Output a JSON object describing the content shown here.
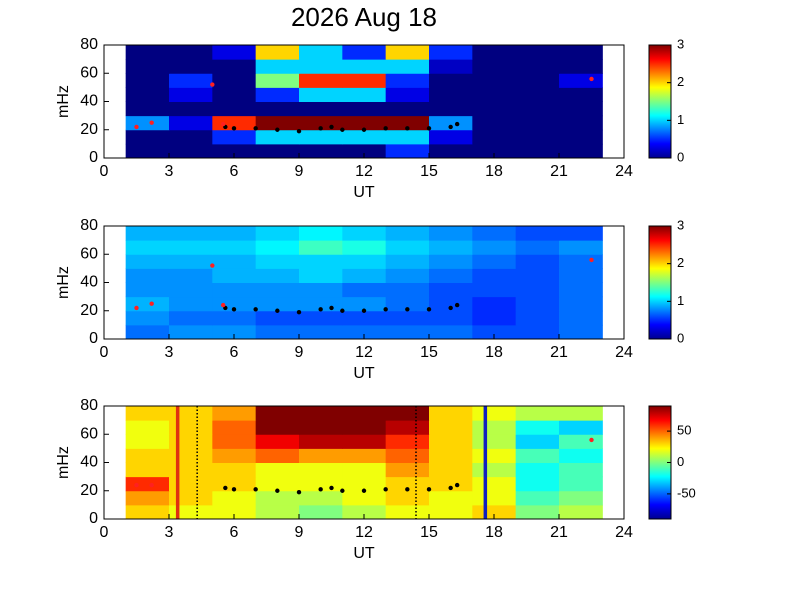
{
  "chart_data": [
    {
      "type": "heatmap",
      "title": "2026 Aug 18",
      "xlabel": "UT",
      "ylabel": "mHz",
      "colormap": "jet",
      "xlim": [
        0,
        24
      ],
      "xticks": [
        0,
        3,
        6,
        9,
        12,
        15,
        18,
        21,
        24
      ],
      "ylim": [
        0,
        80
      ],
      "yticks": [
        0,
        20,
        40,
        60,
        80
      ],
      "x": [
        1,
        3,
        5,
        7,
        9,
        11,
        13,
        15,
        17,
        19,
        21,
        23
      ],
      "y": [
        0,
        10,
        20,
        30,
        40,
        50,
        60,
        70,
        80
      ],
      "z": [
        [
          0,
          0,
          0,
          0,
          0,
          0,
          0.5,
          0,
          0,
          0,
          0
        ],
        [
          0,
          0,
          0.5,
          1,
          1,
          1,
          1,
          0.3,
          0,
          0,
          0
        ],
        [
          0.8,
          0.3,
          2.5,
          3,
          3,
          3,
          3,
          0.8,
          0,
          0,
          0
        ],
        [
          0,
          0,
          0,
          0,
          0,
          0,
          0,
          0,
          0,
          0,
          0
        ],
        [
          0,
          0.3,
          0,
          0.5,
          1,
          1,
          0.3,
          0,
          0,
          0,
          0
        ],
        [
          0,
          0.5,
          0,
          1.5,
          2.5,
          2.5,
          0.5,
          0,
          0,
          0,
          0.3
        ],
        [
          0,
          0,
          0,
          1,
          1,
          1,
          1,
          0.2,
          0,
          0,
          0
        ],
        [
          0,
          0,
          0.3,
          2,
          1,
          0.5,
          2,
          0.5,
          0,
          0,
          0
        ]
      ],
      "clim": [
        0,
        3
      ],
      "cticks": [
        0,
        1,
        2,
        3
      ],
      "trace": {
        "color": "#000000",
        "x": [
          5.6,
          6,
          7,
          8,
          9,
          10,
          10.5,
          11,
          12,
          13,
          14,
          15,
          16,
          16.3
        ],
        "y": [
          22,
          21,
          21,
          20,
          19,
          21,
          22,
          20,
          20,
          21,
          21,
          21,
          22,
          24
        ]
      },
      "stars": {
        "color": "#ff2020",
        "x": [
          1.5,
          2.2,
          5.0,
          5.5,
          22.5
        ],
        "y": [
          22,
          25,
          52,
          24,
          56
        ]
      }
    },
    {
      "type": "heatmap",
      "xlabel": "UT",
      "ylabel": "mHz",
      "colormap": "jet",
      "xlim": [
        0,
        24
      ],
      "xticks": [
        0,
        3,
        6,
        9,
        12,
        15,
        18,
        21,
        24
      ],
      "ylim": [
        0,
        80
      ],
      "yticks": [
        0,
        20,
        40,
        60,
        80
      ],
      "x": [
        1,
        3,
        5,
        7,
        9,
        11,
        13,
        15,
        17,
        19,
        21,
        23
      ],
      "y": [
        0,
        10,
        20,
        30,
        40,
        50,
        60,
        70,
        80
      ],
      "z": [
        [
          0.7,
          0.8,
          0.8,
          0.7,
          0.7,
          0.7,
          0.7,
          0.7,
          0.6,
          0.6,
          0.7
        ],
        [
          0.8,
          0.7,
          0.7,
          0.6,
          0.6,
          0.6,
          0.6,
          0.6,
          0.5,
          0.6,
          0.7
        ],
        [
          0.9,
          0.8,
          0.8,
          0.8,
          0.8,
          0.8,
          0.7,
          0.6,
          0.5,
          0.6,
          0.7
        ],
        [
          0.8,
          0.8,
          0.8,
          0.8,
          0.8,
          0.7,
          0.7,
          0.6,
          0.6,
          0.6,
          0.7
        ],
        [
          0.8,
          0.8,
          0.9,
          0.9,
          1.0,
          0.9,
          0.8,
          0.7,
          0.6,
          0.6,
          0.7
        ],
        [
          0.9,
          0.9,
          0.9,
          1.0,
          1.0,
          1.0,
          0.9,
          0.8,
          0.7,
          0.6,
          0.7
        ],
        [
          1.0,
          1.0,
          1.0,
          1.1,
          1.3,
          1.2,
          1.0,
          0.9,
          0.8,
          0.7,
          0.8
        ],
        [
          0.9,
          0.9,
          0.9,
          1.0,
          1.1,
          1.0,
          0.9,
          0.8,
          0.7,
          0.6,
          0.6
        ]
      ],
      "clim": [
        0,
        3
      ],
      "cticks": [
        0,
        1,
        2,
        3
      ],
      "trace": {
        "color": "#000000",
        "x": [
          5.6,
          6,
          7,
          8,
          9,
          10,
          10.5,
          11,
          12,
          13,
          14,
          15,
          16,
          16.3
        ],
        "y": [
          22,
          21,
          21,
          20,
          19,
          21,
          22,
          20,
          20,
          21,
          21,
          21,
          22,
          24
        ]
      },
      "stars": {
        "color": "#ff2020",
        "x": [
          1.5,
          2.2,
          5.0,
          5.5,
          22.5
        ],
        "y": [
          22,
          25,
          52,
          24,
          56
        ]
      }
    },
    {
      "type": "heatmap",
      "xlabel": "UT",
      "ylabel": "mHz",
      "colormap": "jet",
      "xlim": [
        0,
        24
      ],
      "xticks": [
        0,
        3,
        6,
        9,
        12,
        15,
        18,
        21,
        24
      ],
      "ylim": [
        0,
        80
      ],
      "yticks": [
        0,
        20,
        40,
        60,
        80
      ],
      "x": [
        1,
        3,
        5,
        7,
        9,
        11,
        13,
        15,
        17,
        19,
        21,
        23
      ],
      "y": [
        0,
        10,
        20,
        30,
        40,
        50,
        60,
        70,
        80
      ],
      "z": [
        [
          30,
          20,
          20,
          10,
          0,
          10,
          20,
          20,
          30,
          0,
          10
        ],
        [
          40,
          30,
          20,
          10,
          10,
          20,
          30,
          20,
          20,
          -10,
          0
        ],
        [
          60,
          30,
          30,
          20,
          20,
          20,
          30,
          30,
          20,
          -20,
          -10
        ],
        [
          30,
          30,
          30,
          20,
          20,
          20,
          40,
          30,
          10,
          -20,
          -10
        ],
        [
          30,
          30,
          40,
          50,
          40,
          40,
          50,
          30,
          20,
          -10,
          -20
        ],
        [
          20,
          30,
          50,
          70,
          80,
          80,
          60,
          30,
          10,
          -30,
          -10
        ],
        [
          20,
          30,
          50,
          90,
          90,
          90,
          80,
          30,
          10,
          -20,
          -30
        ],
        [
          30,
          30,
          40,
          90,
          90,
          90,
          90,
          30,
          20,
          10,
          10
        ]
      ],
      "clim": [
        -90,
        90
      ],
      "cticks": [
        -50,
        0,
        50
      ],
      "trace": {
        "color": "#000000",
        "x": [
          5.6,
          6,
          7,
          8,
          9,
          10,
          10.5,
          11,
          12,
          13,
          14,
          15,
          16,
          16.3
        ],
        "y": [
          22,
          21,
          21,
          20,
          19,
          21,
          22,
          20,
          20,
          21,
          21,
          21,
          22,
          24
        ]
      },
      "stars": {
        "color": "#ff2020",
        "x": [
          1.5,
          2.2,
          22.5
        ],
        "y": [
          24,
          24,
          56
        ]
      },
      "vlines": [
        {
          "x": 3.4,
          "color": "#e03010",
          "style": "solid"
        },
        {
          "x": 4.3,
          "color": "#000000",
          "style": "dotted"
        },
        {
          "x": 14.4,
          "color": "#000000",
          "style": "dotted"
        },
        {
          "x": 17.6,
          "color": "#1020c0",
          "style": "solid"
        }
      ]
    }
  ]
}
